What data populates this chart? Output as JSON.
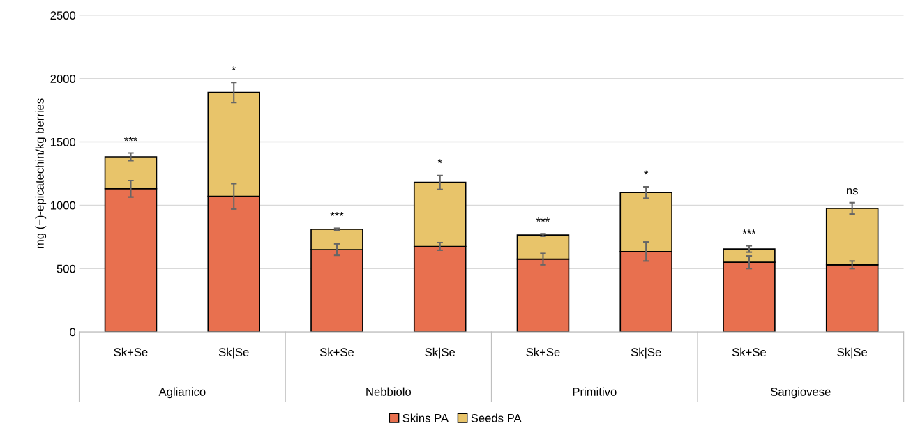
{
  "chart_data": {
    "type": "bar",
    "stacked": true,
    "ylabel": "mg (−)-epicatechin/kg berries",
    "categories": [
      "Sk+Se",
      "Sk|Se",
      "Sk+Se",
      "Sk|Se",
      "Sk+Se",
      "Sk|Se",
      "Sk+Se",
      "Sk|Se"
    ],
    "series": [
      {
        "name": "Skins PA",
        "color": "#e8704f",
        "values": [
          1130,
          1070,
          650,
          675,
          575,
          635,
          550,
          530
        ],
        "errors": [
          65,
          100,
          45,
          30,
          45,
          75,
          50,
          30
        ]
      },
      {
        "name": "Seeds PA",
        "color": "#e8c46a",
        "values": [
          252,
          820,
          160,
          505,
          190,
          465,
          105,
          445
        ],
        "errors": [
          30,
          80,
          8,
          55,
          10,
          45,
          25,
          45
        ]
      }
    ],
    "ylim": [
      0,
      2500
    ],
    "yticks": [
      0,
      500,
      1000,
      1500,
      2000,
      2500
    ],
    "grid": "y",
    "legend": "bottom",
    "annotations": [
      "***",
      "*",
      "***",
      "*",
      "***",
      "*",
      "***",
      "ns",
      "Aglianico",
      "Nebbiolo",
      "Primitivo",
      "Sangiovese"
    ]
  }
}
